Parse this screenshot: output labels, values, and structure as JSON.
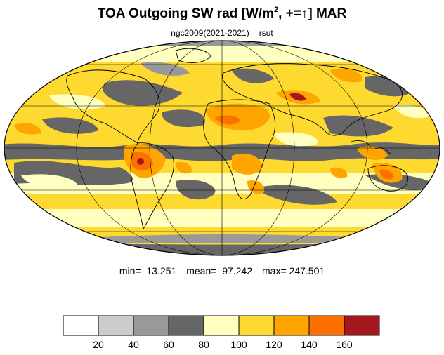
{
  "title": {
    "prefix": "TOA Outgoing SW rad [W/m",
    "exponent": "2",
    "suffix": ", +=↑] MAR"
  },
  "subtitle": {
    "case": "ngc2009(2021-2021)",
    "variable": "rsut"
  },
  "stats": {
    "min_label": "min=",
    "min": "13.251",
    "mean_label": "mean=",
    "mean": "97.242",
    "max_label": "max=",
    "max": "247.501"
  },
  "chart_data": {
    "type": "heatmap",
    "projection": "Mollweide",
    "units": "W/m2",
    "colorbar": {
      "levels": [
        20,
        40,
        60,
        80,
        100,
        120,
        140,
        160
      ],
      "tick_labels": [
        "20",
        "40",
        "60",
        "80",
        "100",
        "120",
        "140",
        "160"
      ],
      "colors": [
        "#ffffff",
        "#cccccc",
        "#999999",
        "#666666",
        "#ffffbf",
        "#fed92f",
        "#fea500",
        "#fc7000",
        "#a3171d"
      ]
    },
    "value_range": [
      13.251,
      247.501
    ],
    "mean": 97.242
  },
  "colors": {
    "land_outline": "#000000",
    "grid": "#000000"
  }
}
